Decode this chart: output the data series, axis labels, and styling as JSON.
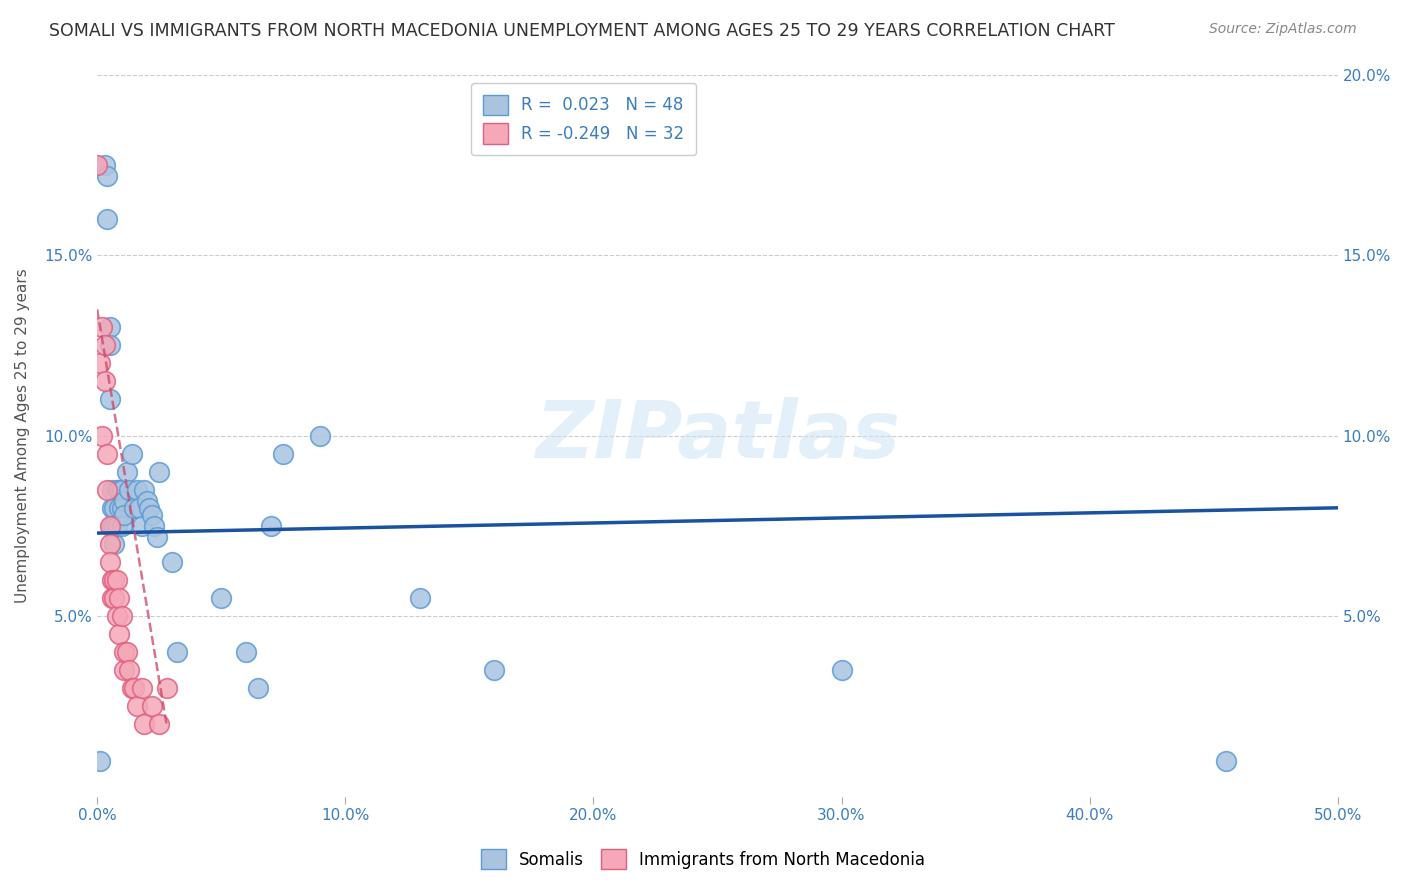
{
  "title": "SOMALI VS IMMIGRANTS FROM NORTH MACEDONIA UNEMPLOYMENT AMONG AGES 25 TO 29 YEARS CORRELATION CHART",
  "source": "Source: ZipAtlas.com",
  "ylabel": "Unemployment Among Ages 25 to 29 years",
  "xlim": [
    0,
    0.5
  ],
  "ylim": [
    0,
    0.2
  ],
  "xticks": [
    0.0,
    0.1,
    0.2,
    0.3,
    0.4,
    0.5
  ],
  "yticks": [
    0.0,
    0.05,
    0.1,
    0.15,
    0.2
  ],
  "xtick_labels": [
    "0.0%",
    "10.0%",
    "20.0%",
    "30.0%",
    "40.0%",
    "50.0%"
  ],
  "ytick_labels_left": [
    "",
    "5.0%",
    "10.0%",
    "15.0%",
    ""
  ],
  "ytick_labels_right": [
    "",
    "5.0%",
    "10.0%",
    "15.0%",
    "20.0%"
  ],
  "background_color": "#ffffff",
  "grid_color": "#cccccc",
  "somali_color": "#aac4e0",
  "macedonia_color": "#f4a8b8",
  "somali_edge_color": "#5b9bd5",
  "macedonia_edge_color": "#e06080",
  "somali_R": 0.023,
  "somali_N": 48,
  "macedonia_R": -0.249,
  "macedonia_N": 32,
  "somali_line_color": "#1a52a0",
  "macedonia_line_color": "#cc4466",
  "legend_label_somali": "Somalis",
  "legend_label_macedonia": "Immigrants from North Macedonia",
  "somali_x": [
    0.001,
    0.003,
    0.004,
    0.004,
    0.005,
    0.005,
    0.005,
    0.006,
    0.006,
    0.006,
    0.007,
    0.007,
    0.007,
    0.008,
    0.008,
    0.009,
    0.009,
    0.01,
    0.01,
    0.01,
    0.011,
    0.011,
    0.012,
    0.013,
    0.014,
    0.015,
    0.016,
    0.017,
    0.018,
    0.019,
    0.02,
    0.021,
    0.022,
    0.023,
    0.024,
    0.025,
    0.03,
    0.032,
    0.05,
    0.06,
    0.065,
    0.07,
    0.075,
    0.09,
    0.13,
    0.16,
    0.3,
    0.455
  ],
  "somali_y": [
    0.01,
    0.175,
    0.172,
    0.16,
    0.13,
    0.125,
    0.11,
    0.085,
    0.08,
    0.075,
    0.08,
    0.075,
    0.07,
    0.085,
    0.075,
    0.085,
    0.08,
    0.085,
    0.08,
    0.075,
    0.082,
    0.078,
    0.09,
    0.085,
    0.095,
    0.08,
    0.085,
    0.08,
    0.075,
    0.085,
    0.082,
    0.08,
    0.078,
    0.075,
    0.072,
    0.09,
    0.065,
    0.04,
    0.055,
    0.04,
    0.03,
    0.075,
    0.095,
    0.1,
    0.055,
    0.035,
    0.035,
    0.01
  ],
  "macedonia_x": [
    0.0,
    0.001,
    0.002,
    0.002,
    0.003,
    0.003,
    0.004,
    0.004,
    0.005,
    0.005,
    0.005,
    0.006,
    0.006,
    0.007,
    0.007,
    0.008,
    0.008,
    0.009,
    0.009,
    0.01,
    0.011,
    0.011,
    0.012,
    0.013,
    0.014,
    0.015,
    0.016,
    0.018,
    0.019,
    0.022,
    0.025,
    0.028
  ],
  "macedonia_y": [
    0.175,
    0.12,
    0.13,
    0.1,
    0.125,
    0.115,
    0.095,
    0.085,
    0.075,
    0.07,
    0.065,
    0.06,
    0.055,
    0.06,
    0.055,
    0.05,
    0.06,
    0.055,
    0.045,
    0.05,
    0.035,
    0.04,
    0.04,
    0.035,
    0.03,
    0.03,
    0.025,
    0.03,
    0.02,
    0.025,
    0.02,
    0.03
  ]
}
